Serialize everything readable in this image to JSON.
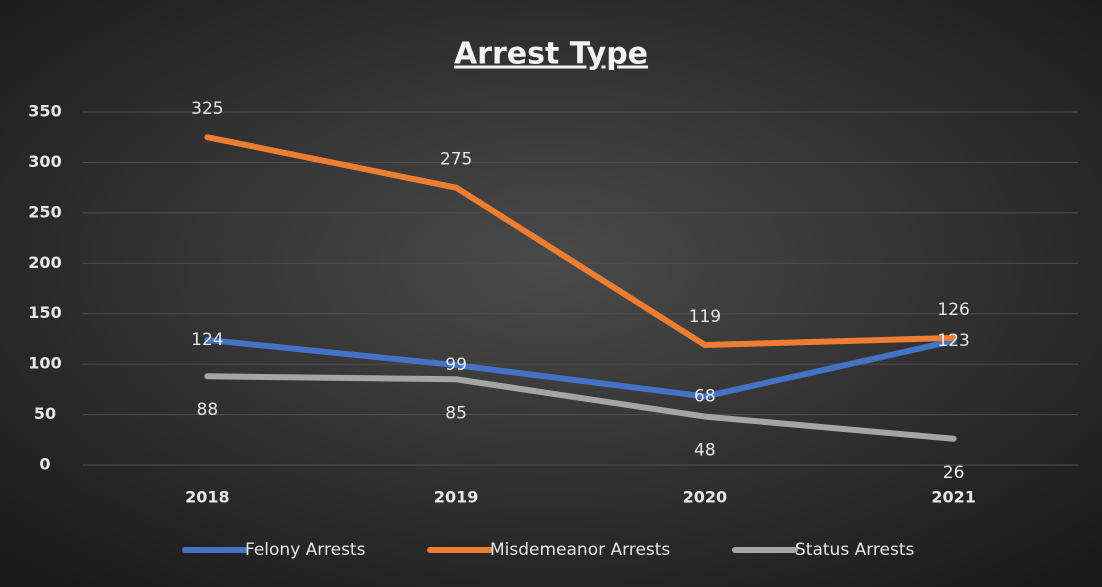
{
  "chart_data": {
    "type": "line",
    "title": "Arrest Type",
    "categories": [
      "2018",
      "2019",
      "2020",
      "2021"
    ],
    "series": [
      {
        "name": "Felony Arrests",
        "color": "#4472c4",
        "values": [
          124,
          99,
          68,
          123
        ]
      },
      {
        "name": "Misdemeanor Arrests",
        "color": "#ed7d31",
        "values": [
          325,
          275,
          119,
          126
        ]
      },
      {
        "name": "Status Arrests",
        "color": "#a5a5a5",
        "values": [
          88,
          85,
          48,
          26
        ]
      }
    ],
    "ylim": [
      0,
      350
    ],
    "yticks": [
      0,
      50,
      100,
      150,
      200,
      250,
      300,
      350
    ],
    "grid": true,
    "legend": "bottom"
  }
}
